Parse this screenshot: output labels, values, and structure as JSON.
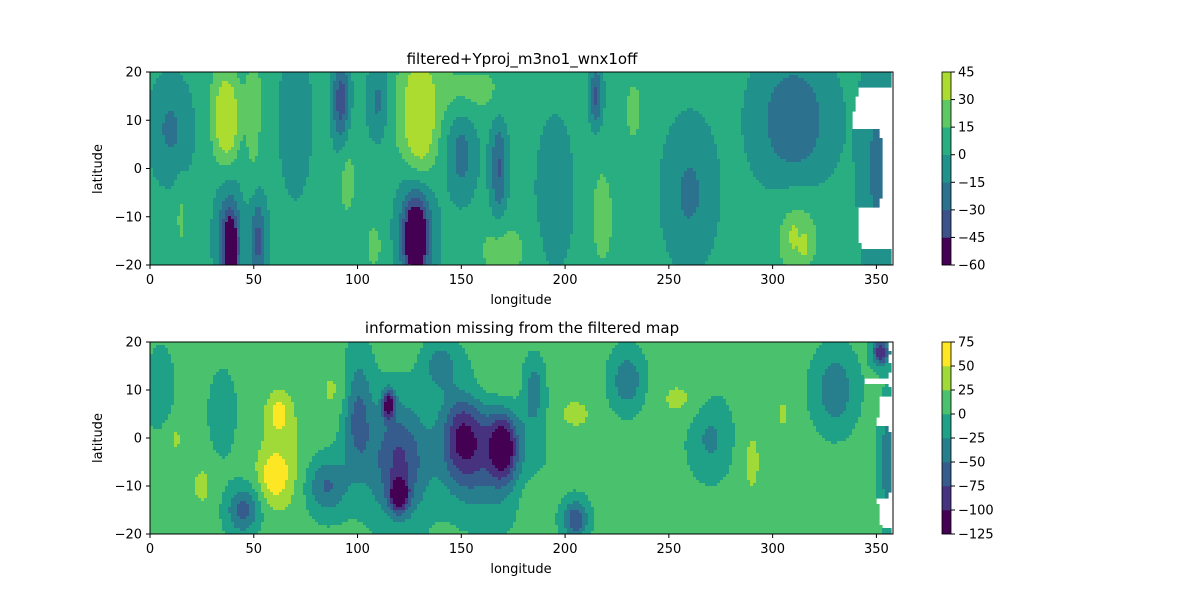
{
  "chart_data": [
    {
      "type": "heatmap",
      "subtype": "filled-contour",
      "title": "filtered+Yproj_m3no1_wnx1off",
      "xlabel": "longitude",
      "ylabel": "latitude",
      "xlim": [
        0,
        358
      ],
      "ylim": [
        -20,
        20
      ],
      "xticks": [
        "0",
        "50",
        "100",
        "150",
        "200",
        "250",
        "300",
        "350"
      ],
      "yticks": [
        "20",
        "10",
        "0",
        "−10",
        "−20"
      ],
      "colorbar": {
        "levels": [
          -60,
          -45,
          -30,
          -15,
          0,
          15,
          30,
          45
        ],
        "tick_labels": [
          "45",
          "30",
          "15",
          "0",
          "−15",
          "−30",
          "−45",
          "−60"
        ],
        "colors": [
          "#440154",
          "#3b528b",
          "#2c728e",
          "#21918c",
          "#28ae80",
          "#5ec962",
          "#addc30"
        ],
        "colormap": "viridis"
      },
      "base_value": 5,
      "features": [
        {
          "lon": 37,
          "lat": 10,
          "value": 42,
          "w": 5,
          "h": 7
        },
        {
          "lon": 36,
          "lat": 12,
          "value": 25,
          "w": 8,
          "h": 12
        },
        {
          "lon": 50,
          "lat": 8,
          "value": 20,
          "w": 4,
          "h": 12
        },
        {
          "lon": 95,
          "lat": -2,
          "value": 20,
          "w": 5,
          "h": 10
        },
        {
          "lon": 130,
          "lat": 10,
          "value": 40,
          "w": 7,
          "h": 11
        },
        {
          "lon": 128,
          "lat": 10,
          "value": 22,
          "w": 13,
          "h": 18
        },
        {
          "lon": 155,
          "lat": 16,
          "value": 20,
          "w": 22,
          "h": 6
        },
        {
          "lon": 170,
          "lat": -17,
          "value": 22,
          "w": 13,
          "h": 7
        },
        {
          "lon": 108,
          "lat": -16,
          "value": 18,
          "w": 6,
          "h": 7
        },
        {
          "lon": 218,
          "lat": -10,
          "value": 22,
          "w": 6,
          "h": 12
        },
        {
          "lon": 233,
          "lat": 12,
          "value": 18,
          "w": 6,
          "h": 10
        },
        {
          "lon": 312,
          "lat": -14,
          "value": 26,
          "w": 11,
          "h": 9
        },
        {
          "lon": 315,
          "lat": -16,
          "value": 34,
          "w": 2,
          "h": 2
        },
        {
          "lon": 310,
          "lat": -14,
          "value": 32,
          "w": 1.5,
          "h": 2
        },
        {
          "lon": 15,
          "lat": -10,
          "value": 18,
          "w": 3,
          "h": 8
        },
        {
          "lon": 50,
          "lat": 16,
          "value": 18,
          "w": 4,
          "h": 5
        },
        {
          "lon": 39,
          "lat": -17,
          "value": -58,
          "w": 3,
          "h": 6
        },
        {
          "lon": 38,
          "lat": -14,
          "value": -38,
          "w": 6,
          "h": 10
        },
        {
          "lon": 52,
          "lat": -15,
          "value": -35,
          "w": 4,
          "h": 9
        },
        {
          "lon": 128,
          "lat": -15,
          "value": -58,
          "w": 5,
          "h": 7
        },
        {
          "lon": 128,
          "lat": -12,
          "value": -38,
          "w": 9,
          "h": 12
        },
        {
          "lon": 92,
          "lat": 14,
          "value": -40,
          "w": 4,
          "h": 9
        },
        {
          "lon": 110,
          "lat": 14,
          "value": -20,
          "w": 5,
          "h": 8
        },
        {
          "lon": 168,
          "lat": 0,
          "value": -32,
          "w": 4,
          "h": 10
        },
        {
          "lon": 215,
          "lat": 15,
          "value": -35,
          "w": 3,
          "h": 6
        },
        {
          "lon": 310,
          "lat": 10,
          "value": -28,
          "w": 18,
          "h": 13
        },
        {
          "lon": 10,
          "lat": 8,
          "value": -18,
          "w": 10,
          "h": 10
        },
        {
          "lon": 260,
          "lat": -5,
          "value": -18,
          "w": 12,
          "h": 14
        },
        {
          "lon": 350,
          "lat": 0,
          "value": -18,
          "w": 8,
          "h": 22
        },
        {
          "lon": 150,
          "lat": 3,
          "value": -22,
          "w": 7,
          "h": 9
        },
        {
          "lon": 195,
          "lat": -5,
          "value": -15,
          "w": 8,
          "h": 14
        },
        {
          "lon": 70,
          "lat": 10,
          "value": -15,
          "w": 7,
          "h": 14
        }
      ]
    },
    {
      "type": "heatmap",
      "subtype": "filled-contour",
      "title": "information missing from the filtered map",
      "xlabel": "longitude",
      "ylabel": "latitude",
      "xlim": [
        0,
        358
      ],
      "ylim": [
        -20,
        20
      ],
      "xticks": [
        "0",
        "50",
        "100",
        "150",
        "200",
        "250",
        "300",
        "350"
      ],
      "yticks": [
        "20",
        "10",
        "0",
        "−10",
        "−20"
      ],
      "colorbar": {
        "levels": [
          -125,
          -100,
          -75,
          -50,
          -25,
          0,
          25,
          50,
          75
        ],
        "tick_labels": [
          "75",
          "50",
          "25",
          "0",
          "−25",
          "−50",
          "−75",
          "−100",
          "−125"
        ],
        "colors": [
          "#440154",
          "#46327e",
          "#365c8d",
          "#277f8e",
          "#1fa187",
          "#4ac16d",
          "#a0da39",
          "#fde725"
        ],
        "colormap": "viridis"
      },
      "base_value": 8,
      "features": [
        {
          "lon": 60,
          "lat": -8,
          "value": 55,
          "w": 7,
          "h": 5
        },
        {
          "lon": 62,
          "lat": 5,
          "value": 52,
          "w": 5,
          "h": 4
        },
        {
          "lon": 64,
          "lat": -4,
          "value": 32,
          "w": 14,
          "h": 14
        },
        {
          "lon": 90,
          "lat": 10,
          "value": 30,
          "w": 10,
          "h": 6
        },
        {
          "lon": 165,
          "lat": 10,
          "value": 30,
          "w": 20,
          "h": 5
        },
        {
          "lon": 205,
          "lat": 5,
          "value": 40,
          "w": 7,
          "h": 3
        },
        {
          "lon": 255,
          "lat": 8,
          "value": 30,
          "w": 12,
          "h": 5
        },
        {
          "lon": 290,
          "lat": -5,
          "value": 30,
          "w": 6,
          "h": 10
        },
        {
          "lon": 25,
          "lat": -10,
          "value": 30,
          "w": 6,
          "h": 6
        },
        {
          "lon": 12,
          "lat": 0,
          "value": 28,
          "w": 6,
          "h": 5
        },
        {
          "lon": 305,
          "lat": 5,
          "value": 28,
          "w": 5,
          "h": 5
        },
        {
          "lon": 182,
          "lat": -12,
          "value": 26,
          "w": 7,
          "h": 6
        },
        {
          "lon": 120,
          "lat": -12,
          "value": -115,
          "w": 4,
          "h": 3
        },
        {
          "lon": 115,
          "lat": 7,
          "value": -105,
          "w": 3,
          "h": 3
        },
        {
          "lon": 120,
          "lat": -5,
          "value": -80,
          "w": 14,
          "h": 12
        },
        {
          "lon": 150,
          "lat": 0,
          "value": -80,
          "w": 10,
          "h": 10
        },
        {
          "lon": 170,
          "lat": -2,
          "value": -90,
          "w": 6,
          "h": 6
        },
        {
          "lon": 165,
          "lat": -3,
          "value": -60,
          "w": 18,
          "h": 12
        },
        {
          "lon": 100,
          "lat": 5,
          "value": -60,
          "w": 7,
          "h": 12
        },
        {
          "lon": 85,
          "lat": -10,
          "value": -55,
          "w": 10,
          "h": 6
        },
        {
          "lon": 45,
          "lat": -15,
          "value": -60,
          "w": 8,
          "h": 5
        },
        {
          "lon": 205,
          "lat": -17,
          "value": -70,
          "w": 6,
          "h": 4
        },
        {
          "lon": 230,
          "lat": 12,
          "value": -45,
          "w": 8,
          "h": 6
        },
        {
          "lon": 330,
          "lat": 10,
          "value": -45,
          "w": 10,
          "h": 8
        },
        {
          "lon": 352,
          "lat": 18,
          "value": -95,
          "w": 4,
          "h": 3
        },
        {
          "lon": 355,
          "lat": -5,
          "value": -40,
          "w": 4,
          "h": 12
        },
        {
          "lon": 35,
          "lat": 5,
          "value": -25,
          "w": 6,
          "h": 8
        },
        {
          "lon": 270,
          "lat": 0,
          "value": -30,
          "w": 10,
          "h": 8
        },
        {
          "lon": 5,
          "lat": 10,
          "value": -25,
          "w": 6,
          "h": 8
        },
        {
          "lon": 140,
          "lat": 15,
          "value": -40,
          "w": 8,
          "h": 5
        },
        {
          "lon": 185,
          "lat": 10,
          "value": -45,
          "w": 5,
          "h": 6
        }
      ]
    }
  ]
}
